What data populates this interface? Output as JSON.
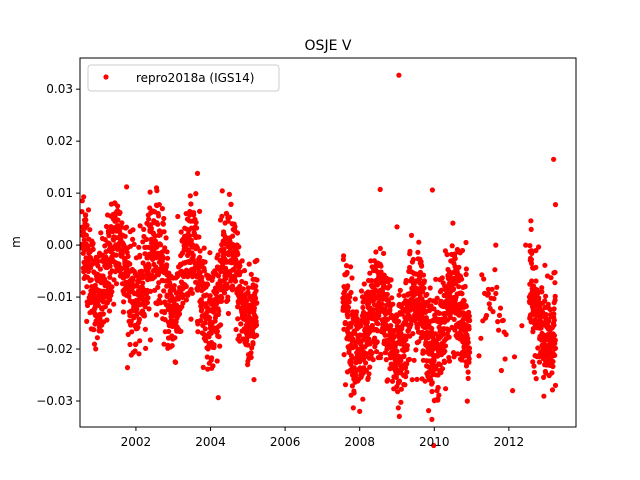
{
  "chart_data": {
    "type": "scatter",
    "title": "OSJE V",
    "xlabel": "",
    "ylabel": "m",
    "xlim": [
      2000.5,
      2013.8
    ],
    "ylim": [
      -0.035,
      0.036
    ],
    "xticks": [
      2002,
      2004,
      2006,
      2008,
      2010,
      2012
    ],
    "yticks": [
      -0.03,
      -0.02,
      -0.01,
      0.0,
      0.01,
      0.02,
      0.03
    ],
    "ytick_labels": [
      "−0.03",
      "−0.02",
      "−0.01",
      "0.00",
      "0.01",
      "0.02",
      "0.03"
    ],
    "grid": false,
    "legend": {
      "placement": "top-left",
      "entries": [
        "repro2018a (IGS14)"
      ]
    },
    "series": [
      {
        "name": "repro2018a (IGS14)",
        "color": "#ff0000",
        "marker": "circle",
        "segments": [
          {
            "x_start": 2000.55,
            "x_end": 2005.25,
            "baseline": -0.004,
            "trend": -0.001,
            "amplitude": 0.006,
            "noise": 0.005,
            "step": 0.0035
          },
          {
            "x_start": 2007.55,
            "x_end": 2010.95,
            "baseline": -0.016,
            "trend": 0.0005,
            "amplitude": 0.005,
            "noise": 0.005,
            "step": 0.003
          },
          {
            "x_start": 2011.25,
            "x_end": 2011.95,
            "baseline": -0.013,
            "trend": 0.0,
            "amplitude": 0.004,
            "noise": 0.004,
            "step": 0.025
          },
          {
            "x_start": 2012.55,
            "x_end": 2013.25,
            "baseline": -0.013,
            "trend": -0.002,
            "amplitude": 0.005,
            "noise": 0.005,
            "step": 0.003
          }
        ],
        "outliers": [
          [
            2009.05,
            0.0327
          ],
          [
            2013.2,
            0.0165
          ],
          [
            2013.25,
            0.0078
          ],
          [
            2009.0,
            0.0035
          ],
          [
            2008.55,
            0.0107
          ],
          [
            2009.95,
            0.0106
          ],
          [
            2003.65,
            0.0138
          ],
          [
            2002.55,
            0.011
          ],
          [
            2001.75,
            0.0112
          ],
          [
            2000.6,
            0.0093
          ],
          [
            2011.45,
            -0.0085
          ],
          [
            2011.65,
            0.0
          ],
          [
            2012.1,
            -0.028
          ],
          [
            2012.15,
            -0.0215
          ],
          [
            2012.35,
            -0.0155
          ],
          [
            2012.45,
            0.0
          ],
          [
            2011.2,
            -0.0213
          ],
          [
            2008.0,
            -0.032
          ],
          [
            2013.25,
            -0.027
          ],
          [
            2010.85,
            0.0005
          ]
        ]
      }
    ]
  }
}
